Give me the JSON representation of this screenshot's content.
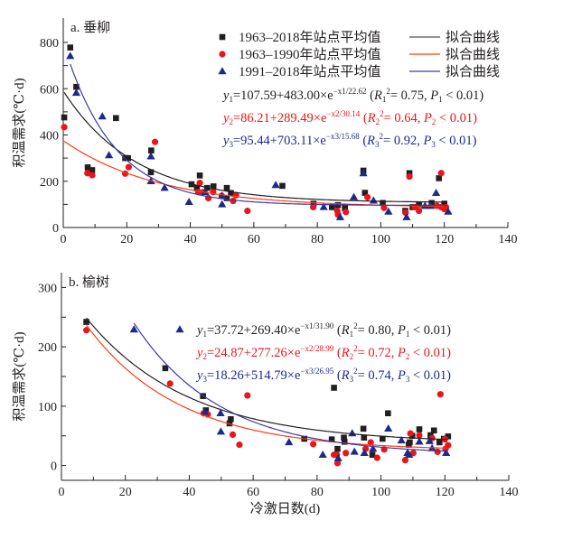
{
  "colors": {
    "black": "#231f20",
    "red": "#e8161b",
    "red_curve": "#ff3a10",
    "blue": "#1c2a8c",
    "blue_curve": "#3a3aa8"
  },
  "chart_data": [
    {
      "type": "scatter",
      "panel_label": "a. 垂柳",
      "xlabel": "",
      "ylabel": "积温需求(℃·d)",
      "xlim": [
        0,
        140
      ],
      "ylim": [
        0,
        800
      ],
      "xticks": [
        "0",
        "20",
        "40",
        "60",
        "80",
        "100",
        "120",
        "140"
      ],
      "yticks": [
        "0",
        "200",
        "400",
        "600",
        "800"
      ],
      "legend": [
        {
          "marker": "square",
          "color": "black",
          "label": "1963–2018年站点平均值",
          "line_label": "拟合曲线"
        },
        {
          "marker": "circle",
          "color": "red",
          "label": "1963–1990年站点平均值",
          "line_label": "拟合曲线"
        },
        {
          "marker": "triangle",
          "color": "blue",
          "label": "1991–2018年站点平均值",
          "line_label": "拟合曲线"
        }
      ],
      "equations": [
        {
          "color": "black",
          "y": "y",
          "i": "1",
          "body": "=107.59+483.00×e",
          "exp": "−x1/22.62",
          "stat_open": " (",
          "R": "R",
          "Ri": "1",
          "R2": "2",
          "r2": "= 0.75, ",
          "P": "P",
          "Pi": "1",
          "p": " < 0.01)",
          "a": 107.59,
          "b": 483.0,
          "c": 22.62,
          "xrange": [
            0.3,
            120
          ]
        },
        {
          "color": "red",
          "y": "y",
          "i": "2",
          "body": "=86.21+289.49×e",
          "exp": "−x2/30.14",
          "stat_open": " (",
          "R": "R",
          "Ri": "2",
          "R2": "2",
          "r2": "= 0.64, ",
          "P": "P",
          "Pi": "2",
          "p": " < 0.01)",
          "a": 86.21,
          "b": 289.49,
          "c": 30.14,
          "xrange": [
            0.3,
            120
          ]
        },
        {
          "color": "blue",
          "y": "y",
          "i": "3",
          "body": "=95.44+703.11×e",
          "exp": "−x3/15.68",
          "stat_open": " (",
          "R": "R",
          "Ri": "3",
          "R2": "2",
          "r2": "= 0.92, ",
          "P": "P",
          "Pi": "3",
          "p": " < 0.01)",
          "a": 95.44,
          "b": 703.11,
          "c": 15.68,
          "xrange": [
            2.2,
            121
          ]
        }
      ],
      "series": [
        {
          "name": "1963–2018年站点平均值",
          "marker": "square",
          "color": "black",
          "points": [
            [
              0.3,
              476
            ],
            [
              2.2,
              778
            ],
            [
              4.1,
              608
            ],
            [
              16.6,
              473
            ],
            [
              7.7,
              260
            ],
            [
              9.1,
              248
            ],
            [
              19.5,
              300
            ],
            [
              20.4,
              300
            ],
            [
              27.6,
              239
            ],
            [
              27.7,
              333
            ],
            [
              40.4,
              187
            ],
            [
              42.1,
              171
            ],
            [
              43,
              225
            ],
            [
              45.3,
              171
            ],
            [
              47.3,
              178
            ],
            [
              51.5,
              171
            ],
            [
              52.8,
              149
            ],
            [
              51.5,
              127
            ],
            [
              69,
              180
            ],
            [
              78.8,
              103
            ],
            [
              84.6,
              88
            ],
            [
              86.5,
              97
            ],
            [
              88.7,
              84
            ],
            [
              94.5,
              246
            ],
            [
              95,
              150
            ],
            [
              100.6,
              106
            ],
            [
              107.7,
              72
            ],
            [
              109,
              235
            ],
            [
              118.3,
              213
            ],
            [
              112,
              100
            ],
            [
              116,
              106
            ],
            [
              120,
              103
            ],
            [
              110,
              88
            ]
          ]
        },
        {
          "name": "1963–1990年站点平均值",
          "marker": "circle",
          "color": "red",
          "points": [
            [
              0.3,
              434
            ],
            [
              7.6,
              235
            ],
            [
              9.1,
              226
            ],
            [
              19.5,
              233
            ],
            [
              20.6,
              261
            ],
            [
              28.9,
              370
            ],
            [
              43,
              193
            ],
            [
              42.5,
              153
            ],
            [
              44,
              153
            ],
            [
              45.7,
              127
            ],
            [
              47.2,
              153
            ],
            [
              49.9,
              137
            ],
            [
              53.5,
              115
            ],
            [
              54.4,
              140
            ],
            [
              58,
              72
            ],
            [
              78.7,
              88
            ],
            [
              86.3,
              71
            ],
            [
              86.5,
              56
            ],
            [
              89,
              67
            ],
            [
              95.8,
              131
            ],
            [
              101,
              85
            ],
            [
              107.8,
              64
            ],
            [
              109,
              220
            ],
            [
              110.7,
              88
            ],
            [
              112,
              72
            ],
            [
              119,
              235
            ],
            [
              117.6,
              94
            ],
            [
              119,
              88
            ],
            [
              120,
              80
            ],
            [
              120.5,
              88
            ]
          ]
        },
        {
          "name": "1991–2018年站点平均值",
          "marker": "triangle",
          "color": "blue",
          "points": [
            [
              2.2,
              741
            ],
            [
              4.1,
              582
            ],
            [
              12.3,
              480
            ],
            [
              14.4,
              312
            ],
            [
              27.6,
              307
            ],
            [
              27.6,
              200
            ],
            [
              31.9,
              171
            ],
            [
              39.6,
              110
            ],
            [
              44.7,
              153
            ],
            [
              50,
              100
            ],
            [
              50,
              137
            ],
            [
              66.9,
              183
            ],
            [
              82,
              88
            ],
            [
              87.2,
              44
            ],
            [
              91.5,
              131
            ],
            [
              94.5,
              234
            ],
            [
              97.7,
              116
            ],
            [
              102.4,
              68
            ],
            [
              108.1,
              44
            ],
            [
              113.9,
              93
            ],
            [
              117.4,
              149
            ],
            [
              115.7,
              93
            ],
            [
              121.2,
              68
            ]
          ]
        }
      ]
    },
    {
      "type": "scatter",
      "panel_label": "b. 榆树",
      "xlabel": "冷激日数(d)",
      "ylabel": "积温需求(℃·d)",
      "xlim": [
        0,
        140
      ],
      "ylim": [
        -25,
        325
      ],
      "xticks": [
        "0",
        "20",
        "40",
        "60",
        "80",
        "100",
        "120",
        "140"
      ],
      "yticks": [
        "0",
        "100",
        "200",
        "300"
      ],
      "legend_marker": {
        "marker": "triangle",
        "color": "blue"
      },
      "equations": [
        {
          "color": "black",
          "y": "y",
          "i": "1",
          "body": "=37.72+269.40×e",
          "exp": "−x1/31.90",
          "stat_open": " (",
          "R": "R",
          "Ri": "1",
          "R2": "2",
          "r2": "= 0.80, ",
          "P": "P",
          "Pi": "1",
          "p": " < 0.01)",
          "a": 37.72,
          "b": 269.4,
          "c": 31.9,
          "xrange": [
            7.8,
            121
          ]
        },
        {
          "color": "red",
          "y": "y",
          "i": "2",
          "body": "=24.87+277.26×e",
          "exp": "−x2/28.99",
          "stat_open": " (",
          "R": "R",
          "Ri": "2",
          "R2": "2",
          "r2": "= 0.72, ",
          "P": "P",
          "Pi": "2",
          "p": " < 0.01)",
          "a": 24.87,
          "b": 277.26,
          "c": 28.99,
          "xrange": [
            7.8,
            121
          ]
        },
        {
          "color": "blue",
          "y": "y",
          "i": "3",
          "body": "=18.26+514.79×e",
          "exp": "−x3/26.95",
          "stat_open": " (",
          "R": "R",
          "Ri": "3",
          "R2": "2",
          "r2": "= 0.74, ",
          "P": "P",
          "Pi": "3",
          "p": " < 0.01)",
          "a": 18.26,
          "b": 514.79,
          "c": 26.95,
          "xrange": [
            22.7,
            121
          ]
        }
      ],
      "series": [
        {
          "marker": "square",
          "color": "black",
          "points": [
            [
              7.8,
              242
            ],
            [
              32.5,
              164
            ],
            [
              44.3,
              117
            ],
            [
              45.2,
              93
            ],
            [
              53,
              78
            ],
            [
              52.6,
              71
            ],
            [
              76,
              45
            ],
            [
              84.6,
              44
            ],
            [
              85.3,
              131
            ],
            [
              86.4,
              28
            ],
            [
              88.4,
              47
            ],
            [
              88.6,
              40
            ],
            [
              94.5,
              62
            ],
            [
              94.7,
              47
            ],
            [
              97.3,
              18
            ],
            [
              100.5,
              45
            ],
            [
              102.2,
              88
            ],
            [
              108.7,
              35
            ],
            [
              109,
              39
            ],
            [
              109.8,
              50
            ],
            [
              112,
              61
            ],
            [
              115.5,
              51
            ],
            [
              116.6,
              59
            ],
            [
              118.3,
              39
            ],
            [
              119.7,
              45
            ],
            [
              121,
              49
            ]
          ]
        },
        {
          "marker": "circle",
          "color": "red",
          "points": [
            [
              7.8,
              228
            ],
            [
              34,
              138
            ],
            [
              44.5,
              88
            ],
            [
              45.8,
              86
            ],
            [
              53.6,
              52
            ],
            [
              55.7,
              35
            ],
            [
              58.2,
              118
            ],
            [
              78.8,
              36
            ],
            [
              85.3,
              18
            ],
            [
              86.2,
              18
            ],
            [
              86.4,
              4
            ],
            [
              89,
              21
            ],
            [
              95.2,
              28
            ],
            [
              96.8,
              39
            ],
            [
              98.8,
              13
            ],
            [
              101,
              27
            ],
            [
              107.6,
              9
            ],
            [
              109.2,
              54
            ],
            [
              110.1,
              21
            ],
            [
              112,
              51
            ],
            [
              116,
              46
            ],
            [
              117.7,
              23
            ],
            [
              118.6,
              120
            ],
            [
              120,
              44
            ],
            [
              121,
              34
            ],
            [
              120.2,
              28
            ]
          ]
        },
        {
          "marker": "triangle",
          "color": "blue",
          "points": [
            [
              22.7,
              229
            ],
            [
              44.9,
              90
            ],
            [
              49.8,
              88
            ],
            [
              49.9,
              57
            ],
            [
              71.2,
              39
            ],
            [
              81.8,
              18
            ],
            [
              86.6,
              12
            ],
            [
              91,
              54
            ],
            [
              91.7,
              23
            ],
            [
              94.8,
              21
            ],
            [
              97.5,
              28
            ],
            [
              102.3,
              62
            ],
            [
              106.4,
              42
            ],
            [
              108.3,
              21
            ],
            [
              108.8,
              18
            ],
            [
              112,
              40
            ],
            [
              115.2,
              41
            ],
            [
              116,
              29
            ],
            [
              120.4,
              21
            ]
          ]
        }
      ]
    }
  ]
}
